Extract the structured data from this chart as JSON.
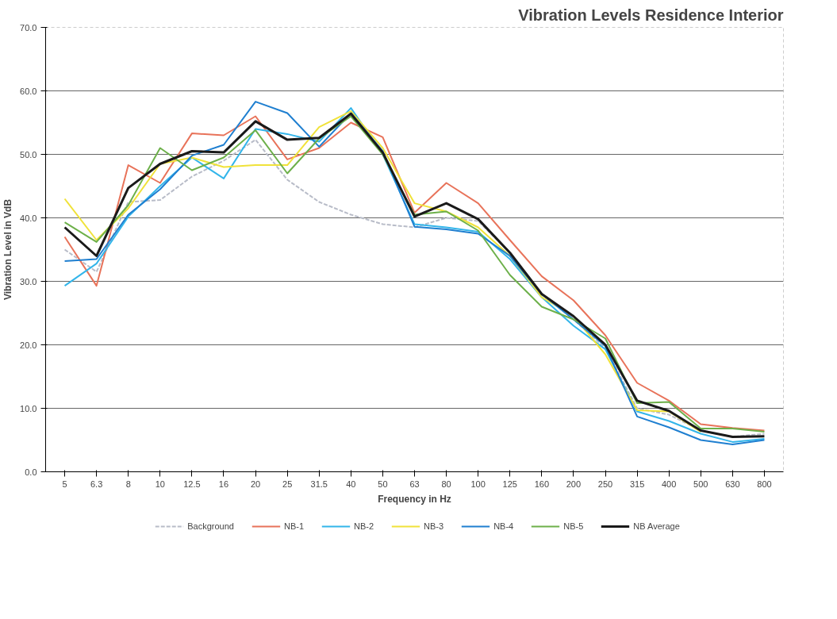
{
  "chart_data": {
    "type": "line",
    "title": "Vibration Levels Residence Interior",
    "xlabel": "Frequency in Hz",
    "ylabel": "Vibration Level in VdB",
    "categories": [
      "5",
      "6.3",
      "8",
      "10",
      "12.5",
      "16",
      "20",
      "25",
      "31.5",
      "40",
      "50",
      "63",
      "80",
      "100",
      "125",
      "160",
      "200",
      "250",
      "315",
      "400",
      "500",
      "630",
      "800"
    ],
    "ylim": [
      0,
      70
    ],
    "yticks": [
      {
        "value": 0,
        "label": "0.0"
      },
      {
        "value": 10,
        "label": "10.0"
      },
      {
        "value": 20,
        "label": "20.0"
      },
      {
        "value": 30,
        "label": "30.0"
      },
      {
        "value": 40,
        "label": "40.0"
      },
      {
        "value": 50,
        "label": "50.0"
      },
      {
        "value": 60,
        "label": "60.0"
      },
      {
        "value": 70,
        "label": "70.0"
      }
    ],
    "grid": "y",
    "legend": "bottom",
    "marker": "none",
    "series": [
      {
        "name": "Background",
        "color": "#b8bcc8",
        "line_style": "dashed",
        "values": [
          35,
          31.5,
          42.5,
          42.8,
          46.5,
          49,
          52.3,
          46,
          42.5,
          40.5,
          39,
          38.5,
          40,
          39.5,
          34.5,
          28,
          24,
          19.5,
          10,
          9,
          6.5,
          5.5,
          6
        ]
      },
      {
        "name": "NB-1",
        "color": "#e8735a",
        "values": [
          37,
          29.3,
          48.3,
          45.5,
          53.3,
          53,
          56,
          49.2,
          51,
          55,
          52.7,
          40.8,
          45.5,
          42.3,
          36.5,
          30.8,
          27,
          21.5,
          14,
          11.2,
          7.5,
          6.9,
          6.5
        ]
      },
      {
        "name": "NB-2",
        "color": "#33b5ea",
        "values": [
          29.3,
          32.8,
          40.2,
          45,
          49.5,
          46.2,
          54,
          53.2,
          52,
          57.3,
          50,
          39,
          38.5,
          37.8,
          33.5,
          27.5,
          23,
          19.3,
          9.5,
          8,
          6,
          4.7,
          5.2
        ]
      },
      {
        "name": "NB-3",
        "color": "#f0e23a",
        "values": [
          43,
          36.5,
          41.5,
          48.5,
          49.5,
          48,
          48.3,
          48.3,
          54.3,
          56.8,
          51,
          42.3,
          41,
          38.5,
          34,
          27.5,
          24.5,
          18.5,
          9.7,
          9.5,
          6.3,
          null,
          null
        ]
      },
      {
        "name": "NB-4",
        "color": "#1f7fd0",
        "values": [
          33.2,
          33.5,
          40.5,
          44.5,
          49.8,
          51.5,
          58.3,
          56.5,
          51.2,
          56.5,
          50.5,
          38.6,
          38.2,
          37.5,
          34,
          28,
          24,
          19.8,
          8.7,
          7,
          5,
          4.3,
          5
        ]
      },
      {
        "name": "NB-5",
        "color": "#6db04a",
        "values": [
          39.3,
          36.2,
          42,
          51,
          47.5,
          49.5,
          53.8,
          47,
          52.5,
          56,
          50,
          40.5,
          41,
          38,
          31,
          26,
          24,
          21,
          10.8,
          11,
          6.8,
          6.8,
          6.3
        ]
      },
      {
        "name": "NB Average",
        "color": "#1a1a1a",
        "values": [
          38.5,
          34,
          44.7,
          48.5,
          50.5,
          50.3,
          55.2,
          52.3,
          52.6,
          56.4,
          50.3,
          40.2,
          42.3,
          39.8,
          34.5,
          28,
          24.5,
          20,
          11.2,
          9.6,
          6.5,
          5.5,
          5.6
        ]
      }
    ]
  }
}
